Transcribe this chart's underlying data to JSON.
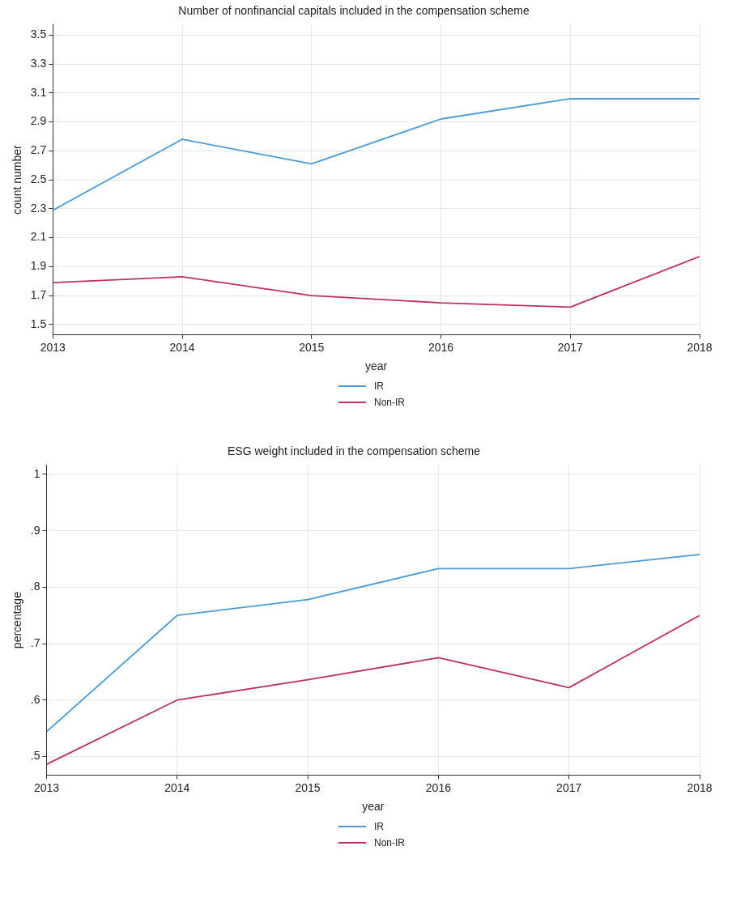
{
  "chart_data": [
    {
      "type": "line",
      "title": "Number of nonfinancial capitals included in the compensation scheme",
      "xlabel": "year",
      "ylabel": "count number",
      "x": [
        2013,
        2014,
        2015,
        2016,
        2017,
        2018
      ],
      "xlim": [
        2013,
        2018
      ],
      "xticks": [
        2013,
        2014,
        2015,
        2016,
        2017,
        2018
      ],
      "ylim": [
        1.43,
        3.57
      ],
      "yticks": [
        1.5,
        1.7,
        1.9,
        2.1,
        2.3,
        2.5,
        2.7,
        2.9,
        3.1,
        3.3,
        3.5
      ],
      "grid": true,
      "legend": "bottom",
      "marker": "none",
      "line_style": "solid",
      "series": [
        {
          "name": "IR",
          "color": "#4a9bd8",
          "values": [
            2.29,
            2.78,
            2.61,
            2.92,
            3.06,
            3.06
          ]
        },
        {
          "name": "Non-IR",
          "color": "#c0305f",
          "values": [
            1.79,
            1.83,
            1.7,
            1.65,
            1.62,
            1.97
          ]
        }
      ]
    },
    {
      "type": "line",
      "title": "ESG weight included in the compensation scheme",
      "xlabel": "year",
      "ylabel": "percentage",
      "x": [
        2013,
        2014,
        2015,
        2016,
        2017,
        2018
      ],
      "xlim": [
        2013,
        2018
      ],
      "xticks": [
        2013,
        2014,
        2015,
        2016,
        2017,
        2018
      ],
      "ylim": [
        0.467,
        1.016
      ],
      "yticks": [
        {
          "value": 0.5,
          "label": ".5"
        },
        {
          "value": 0.6,
          "label": ".6"
        },
        {
          "value": 0.7,
          "label": ".7"
        },
        {
          "value": 0.8,
          "label": ".8"
        },
        {
          "value": 0.9,
          "label": ".9"
        },
        1
      ],
      "grid": true,
      "legend": "bottom",
      "marker": "none",
      "line_style": "solid",
      "series": [
        {
          "name": "IR",
          "color": "#4a9bd8",
          "values": [
            0.544,
            0.75,
            0.778,
            0.833,
            0.833,
            0.858
          ]
        },
        {
          "name": "Non-IR",
          "color": "#c0305f",
          "values": [
            0.486,
            0.6,
            0.636,
            0.675,
            0.622,
            0.75
          ]
        }
      ]
    }
  ]
}
